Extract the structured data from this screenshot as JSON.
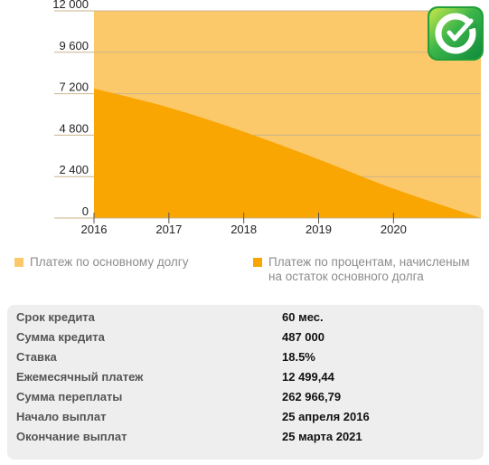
{
  "chart_data": {
    "type": "area",
    "x_ticks": [
      "2016",
      "2017",
      "2018",
      "2019",
      "2020"
    ],
    "y_ticks": [
      "0",
      "2 400",
      "4 800",
      "7 200",
      "9 600",
      "12 000"
    ],
    "ylim": [
      0,
      12000
    ],
    "series": [
      {
        "name": "Платеж по основному долгу",
        "color": "#fcc96a",
        "points": [
          {
            "x": "2016-01",
            "y": 12000
          },
          {
            "x": "2021-03",
            "y": 12000
          }
        ]
      },
      {
        "name": "Платеж по процентам, начисленым на остаток основного долга",
        "color": "#f9a602",
        "points": [
          {
            "x": "2016-01",
            "y": 7500
          },
          {
            "x": "2017-01",
            "y": 6400
          },
          {
            "x": "2018-01",
            "y": 5000
          },
          {
            "x": "2019-01",
            "y": 3400
          },
          {
            "x": "2020-01",
            "y": 1700
          },
          {
            "x": "2021-03",
            "y": 0
          }
        ]
      }
    ],
    "grid": true,
    "legend_position": "bottom"
  },
  "legend": {
    "principal_label": "Платеж по основному долгу",
    "interest_label": "Платеж по процентам, начисленым на остаток основного долга",
    "principal_color": "#fcc96a",
    "interest_color": "#f9a602"
  },
  "info": {
    "rows": [
      {
        "label": "Срок кредита",
        "value": "60 мес."
      },
      {
        "label": "Сумма кредита",
        "value": "487 000"
      },
      {
        "label": "Ставка",
        "value": "18.5%"
      },
      {
        "label": "Ежемесячный платеж",
        "value": "12 499,44"
      },
      {
        "label": "Сумма переплаты",
        "value": "262 966,79"
      },
      {
        "label": "Начало выплат",
        "value": "25 апреля 2016"
      },
      {
        "label": "Окончание выплат",
        "value": "25 марта 2021"
      }
    ]
  },
  "logo": {
    "icon": "sberbank-logo-icon",
    "color": "#21a038"
  }
}
